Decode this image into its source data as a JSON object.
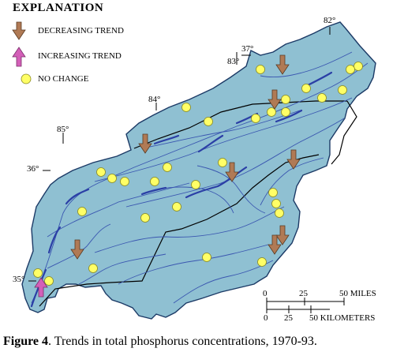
{
  "legend": {
    "title": "EXPLANATION",
    "decreasing": "DECREASING TREND",
    "increasing": "INCREASING TREND",
    "no_change": "NO CHANGE"
  },
  "coordinates": {
    "lon82": "82°",
    "lat37": "37°",
    "lon83": "83°",
    "lon84": "84°",
    "lon85": "85°",
    "lat36": "36°",
    "lat35": "35°"
  },
  "scale": {
    "miles": [
      "0",
      "25",
      "50 MILES"
    ],
    "kilometers": [
      "0",
      "25",
      "50 KILOMETERS"
    ]
  },
  "caption": {
    "figure": "Figure 4",
    "text": ". Trends in total phosphorus concentrations, 1970-93."
  },
  "colors": {
    "basin": "#8fc0d2",
    "reservoir": "#2b3fa6",
    "river": "#3a56b0",
    "decreasing_arrow": "#b07a55",
    "increasing_arrow": "#d35fb8",
    "no_change_dot": "#ffff66"
  }
}
